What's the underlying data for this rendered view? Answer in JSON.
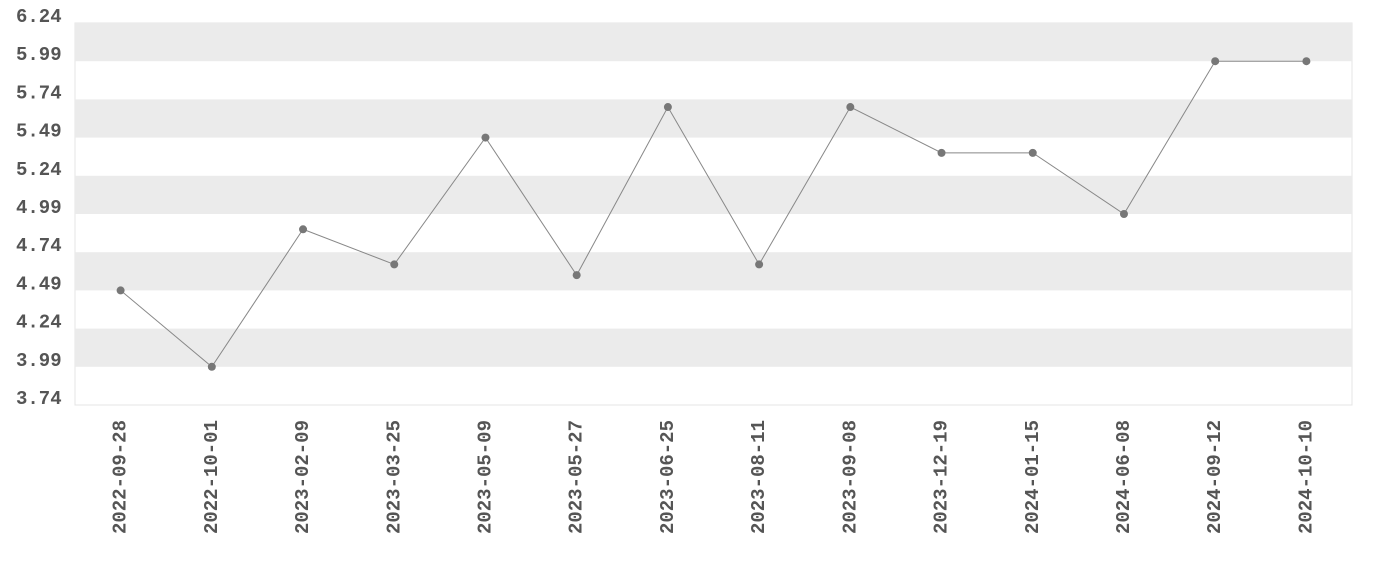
{
  "chart_data": {
    "type": "line",
    "categories": [
      "2022-09-28",
      "2022-10-01",
      "2023-02-09",
      "2023-03-25",
      "2023-05-09",
      "2023-05-27",
      "2023-06-25",
      "2023-08-11",
      "2023-09-08",
      "2023-12-19",
      "2024-01-15",
      "2024-06-08",
      "2024-09-12",
      "2024-10-10"
    ],
    "values": [
      4.49,
      3.99,
      4.89,
      4.66,
      5.49,
      4.59,
      5.69,
      4.66,
      5.69,
      5.39,
      5.39,
      4.99,
      5.99,
      5.99
    ],
    "color": "#888888",
    "marker_color": "#777777",
    "ylim": [
      3.74,
      6.24
    ],
    "yticks": [
      3.74,
      3.99,
      4.24,
      4.49,
      4.74,
      4.99,
      5.24,
      5.49,
      5.74,
      5.99,
      6.24
    ],
    "grid_bands": true,
    "band_color": "#ebebeb"
  }
}
